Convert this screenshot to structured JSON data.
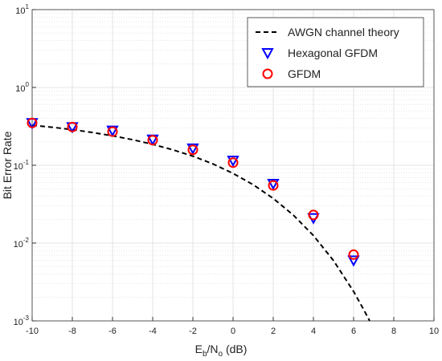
{
  "chart_data": {
    "type": "line",
    "x_label": [
      "E",
      "b",
      "/N",
      "o",
      " (dB)"
    ],
    "y_label": "Bit Error Rate",
    "xlim": [
      -10,
      10
    ],
    "xticks": [
      -10,
      -8,
      -6,
      -4,
      -2,
      0,
      2,
      4,
      6,
      8,
      10
    ],
    "ylim": [
      0.001,
      10
    ],
    "log_y": true,
    "grid": true,
    "legend": "top-right",
    "yticks": [
      {
        "value": 0.001,
        "label": "10",
        "exponent": "-3"
      },
      {
        "value": 0.01,
        "label": "10",
        "exponent": "-2"
      },
      {
        "value": 0.1,
        "label": "10",
        "exponent": "-1"
      },
      {
        "value": 1,
        "label": "10",
        "exponent": "0"
      },
      {
        "value": 10,
        "label": "10",
        "exponent": "1"
      }
    ],
    "series": [
      {
        "name": "AWGN channel theory",
        "color": "#000000",
        "style": "dashed",
        "x": [
          -10,
          -9,
          -8,
          -7,
          -6,
          -5,
          -4,
          -3,
          -2,
          -1,
          0,
          1,
          2,
          3,
          4,
          5,
          6,
          6.5,
          6.8
        ],
        "values": [
          0.327,
          0.308,
          0.287,
          0.264,
          0.239,
          0.213,
          0.186,
          0.158,
          0.131,
          0.104,
          0.0786,
          0.0563,
          0.0375,
          0.0229,
          0.0125,
          0.00595,
          0.00239,
          0.0014,
          0.001
        ]
      },
      {
        "name": "Hexagonal GFDM",
        "color": "#0000ff",
        "style": "triangle",
        "x": [
          -10,
          -8,
          -6,
          -4,
          -2,
          0,
          2,
          4,
          6
        ],
        "values": [
          0.35,
          0.31,
          0.28,
          0.215,
          0.165,
          0.115,
          0.058,
          0.021,
          0.006
        ]
      },
      {
        "name": "GFDM",
        "color": "#ff0000",
        "style": "circle",
        "x": [
          -10,
          -8,
          -6,
          -4,
          -2,
          0,
          2,
          4,
          6
        ],
        "values": [
          0.35,
          0.31,
          0.27,
          0.21,
          0.158,
          0.108,
          0.055,
          0.023,
          0.0071
        ]
      }
    ]
  }
}
